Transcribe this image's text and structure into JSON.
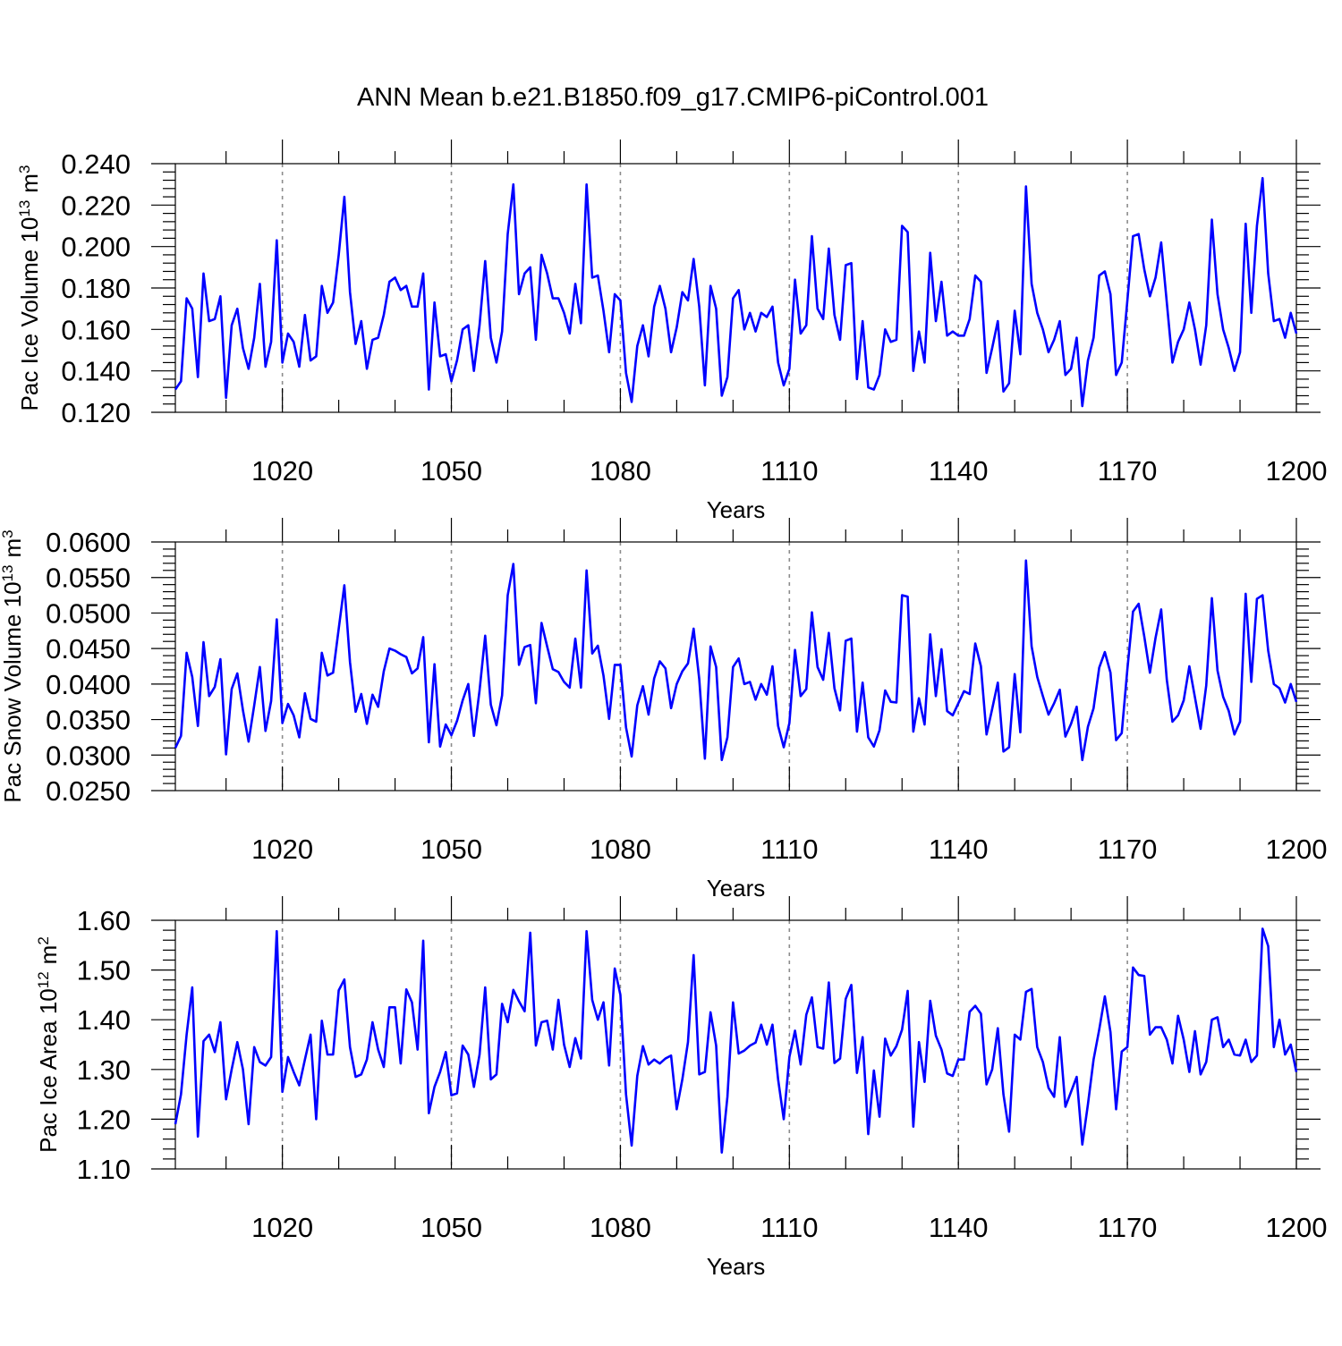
{
  "title": "ANN Mean b.e21.B1850.f09_g17.CMIP6-piControl.001",
  "series_color": "#0000ff",
  "chart_data": [
    {
      "type": "line",
      "title": "ANN Mean b.e21.B1850.f09_g17.CMIP6-piControl.001",
      "xlabel": "Years",
      "ylabel_main": "Pac Ice Volume 10",
      "ylabel_exp": "13",
      "ylabel_unit": "m",
      "ylabel_unit_exp": "3",
      "x_start": 1001,
      "xlim": [
        1001,
        1200
      ],
      "ylim": [
        0.12,
        0.24
      ],
      "x_ticks": [
        "1020",
        "1050",
        "1080",
        "1110",
        "1140",
        "1170",
        "1200"
      ],
      "y_ticks": [
        "0.120",
        "0.140",
        "0.160",
        "0.180",
        "0.200",
        "0.220",
        "0.240"
      ],
      "y_major_step": 0.02,
      "y_minor_step": 0.004,
      "series": [
        {
          "name": "Pac Ice Volume",
          "values": [
            0.131,
            0.135,
            0.175,
            0.17,
            0.137,
            0.187,
            0.164,
            0.165,
            0.176,
            0.127,
            0.162,
            0.17,
            0.151,
            0.141,
            0.156,
            0.182,
            0.142,
            0.154,
            0.203,
            0.144,
            0.158,
            0.154,
            0.142,
            0.167,
            0.145,
            0.147,
            0.181,
            0.168,
            0.173,
            0.196,
            0.224,
            0.178,
            0.153,
            0.164,
            0.141,
            0.155,
            0.156,
            0.167,
            0.183,
            0.185,
            0.179,
            0.181,
            0.171,
            0.171,
            0.187,
            0.131,
            0.173,
            0.147,
            0.148,
            0.135,
            0.145,
            0.16,
            0.162,
            0.14,
            0.162,
            0.193,
            0.156,
            0.144,
            0.159,
            0.206,
            0.23,
            0.177,
            0.187,
            0.19,
            0.155,
            0.196,
            0.187,
            0.175,
            0.175,
            0.168,
            0.158,
            0.182,
            0.163,
            0.23,
            0.185,
            0.186,
            0.169,
            0.149,
            0.177,
            0.174,
            0.139,
            0.125,
            0.152,
            0.162,
            0.147,
            0.171,
            0.181,
            0.17,
            0.149,
            0.161,
            0.178,
            0.174,
            0.194,
            0.171,
            0.133,
            0.181,
            0.17,
            0.128,
            0.137,
            0.175,
            0.179,
            0.16,
            0.168,
            0.159,
            0.168,
            0.166,
            0.171,
            0.144,
            0.133,
            0.141,
            0.184,
            0.158,
            0.162,
            0.205,
            0.17,
            0.165,
            0.199,
            0.167,
            0.155,
            0.191,
            0.192,
            0.136,
            0.164,
            0.132,
            0.131,
            0.138,
            0.16,
            0.154,
            0.155,
            0.21,
            0.207,
            0.14,
            0.159,
            0.144,
            0.197,
            0.164,
            0.183,
            0.157,
            0.159,
            0.157,
            0.157,
            0.165,
            0.186,
            0.183,
            0.139,
            0.151,
            0.164,
            0.13,
            0.134,
            0.169,
            0.148,
            0.229,
            0.182,
            0.168,
            0.16,
            0.149,
            0.155,
            0.164,
            0.138,
            0.141,
            0.156,
            0.123,
            0.145,
            0.156,
            0.186,
            0.188,
            0.177,
            0.138,
            0.144,
            0.174,
            0.205,
            0.206,
            0.189,
            0.176,
            0.185,
            0.202,
            0.173,
            0.144,
            0.154,
            0.16,
            0.173,
            0.16,
            0.143,
            0.162,
            0.213,
            0.177,
            0.16,
            0.151,
            0.14,
            0.149,
            0.211,
            0.168,
            0.21,
            0.233,
            0.187,
            0.164,
            0.165,
            0.156,
            0.168,
            0.158
          ]
        }
      ]
    },
    {
      "type": "line",
      "xlabel": "Years",
      "ylabel_main": "Pac Snow Volume 10",
      "ylabel_exp": "13",
      "ylabel_unit": "m",
      "ylabel_unit_exp": "3",
      "x_start": 1001,
      "xlim": [
        1001,
        1200
      ],
      "ylim": [
        0.025,
        0.06
      ],
      "x_ticks": [
        "1020",
        "1050",
        "1080",
        "1110",
        "1140",
        "1170",
        "1200"
      ],
      "y_ticks": [
        "0.0250",
        "0.0300",
        "0.0350",
        "0.0400",
        "0.0450",
        "0.0500",
        "0.0550",
        "0.0600"
      ],
      "y_major_step": 0.005,
      "y_minor_step": 0.001,
      "series": [
        {
          "name": "Pac Snow Volume",
          "values": [
            0.031,
            0.0327,
            0.0444,
            0.041,
            0.0341,
            0.0459,
            0.0383,
            0.0396,
            0.0435,
            0.0301,
            0.0393,
            0.0415,
            0.0363,
            0.0319,
            0.037,
            0.0424,
            0.0334,
            0.0376,
            0.0491,
            0.0345,
            0.0372,
            0.0356,
            0.0325,
            0.0387,
            0.0351,
            0.0347,
            0.0444,
            0.0412,
            0.0416,
            0.0478,
            0.0539,
            0.0431,
            0.0361,
            0.0386,
            0.0344,
            0.0385,
            0.0368,
            0.0418,
            0.045,
            0.0447,
            0.0442,
            0.0438,
            0.0415,
            0.0422,
            0.0466,
            0.0318,
            0.0428,
            0.0312,
            0.0343,
            0.0328,
            0.0348,
            0.0377,
            0.04,
            0.0327,
            0.0391,
            0.0468,
            0.0371,
            0.0342,
            0.0384,
            0.0525,
            0.0569,
            0.0427,
            0.0452,
            0.0455,
            0.0373,
            0.0486,
            0.0453,
            0.0421,
            0.0417,
            0.0403,
            0.0395,
            0.0464,
            0.0395,
            0.056,
            0.0443,
            0.0454,
            0.0412,
            0.0351,
            0.0427,
            0.0427,
            0.0339,
            0.0298,
            0.037,
            0.0397,
            0.0357,
            0.0408,
            0.0432,
            0.0422,
            0.0366,
            0.04,
            0.0418,
            0.0429,
            0.0478,
            0.0407,
            0.0295,
            0.0453,
            0.0424,
            0.0293,
            0.0325,
            0.0424,
            0.0436,
            0.04,
            0.0403,
            0.0378,
            0.04,
            0.0385,
            0.0425,
            0.0341,
            0.0311,
            0.0345,
            0.0448,
            0.0383,
            0.0393,
            0.0501,
            0.0424,
            0.0406,
            0.0472,
            0.0394,
            0.0363,
            0.0461,
            0.0464,
            0.0333,
            0.0402,
            0.0325,
            0.0312,
            0.0335,
            0.0391,
            0.0375,
            0.0374,
            0.0525,
            0.0523,
            0.0333,
            0.038,
            0.0343,
            0.047,
            0.0383,
            0.0449,
            0.0362,
            0.0356,
            0.0373,
            0.039,
            0.0386,
            0.0457,
            0.0425,
            0.0329,
            0.0365,
            0.0402,
            0.0305,
            0.0311,
            0.0414,
            0.0332,
            0.0574,
            0.0453,
            0.041,
            0.0383,
            0.0357,
            0.0373,
            0.0392,
            0.0326,
            0.0344,
            0.0368,
            0.0293,
            0.034,
            0.0366,
            0.0423,
            0.0445,
            0.0416,
            0.0321,
            0.0331,
            0.0421,
            0.0502,
            0.0513,
            0.0467,
            0.0416,
            0.0465,
            0.0505,
            0.0406,
            0.0347,
            0.0356,
            0.0377,
            0.0425,
            0.0381,
            0.0337,
            0.0398,
            0.0521,
            0.0419,
            0.0382,
            0.0362,
            0.0329,
            0.0347,
            0.0527,
            0.0403,
            0.052,
            0.0525,
            0.0447,
            0.04,
            0.0394,
            0.0374,
            0.04,
            0.0375
          ]
        }
      ]
    },
    {
      "type": "line",
      "xlabel": "Years",
      "ylabel_main": "Pac Ice Area 10",
      "ylabel_exp": "12",
      "ylabel_unit": "m",
      "ylabel_unit_exp": "2",
      "x_start": 1001,
      "xlim": [
        1001,
        1200
      ],
      "ylim": [
        1.1,
        1.6
      ],
      "x_ticks": [
        "1020",
        "1050",
        "1080",
        "1110",
        "1140",
        "1170",
        "1200"
      ],
      "y_ticks": [
        "1.10",
        "1.20",
        "1.30",
        "1.40",
        "1.50",
        "1.60"
      ],
      "y_major_step": 0.1,
      "y_minor_step": 0.02,
      "series": [
        {
          "name": "Pac Ice Area",
          "values": [
            1.19,
            1.25,
            1.37,
            1.465,
            1.165,
            1.357,
            1.37,
            1.335,
            1.395,
            1.24,
            1.3,
            1.355,
            1.3,
            1.19,
            1.345,
            1.315,
            1.308,
            1.325,
            1.578,
            1.255,
            1.325,
            1.295,
            1.268,
            1.32,
            1.37,
            1.2,
            1.398,
            1.33,
            1.33,
            1.459,
            1.481,
            1.345,
            1.285,
            1.29,
            1.32,
            1.395,
            1.34,
            1.305,
            1.425,
            1.425,
            1.312,
            1.461,
            1.435,
            1.34,
            1.559,
            1.212,
            1.265,
            1.295,
            1.335,
            1.248,
            1.252,
            1.348,
            1.33,
            1.265,
            1.33,
            1.465,
            1.28,
            1.29,
            1.432,
            1.395,
            1.46,
            1.437,
            1.417,
            1.575,
            1.348,
            1.395,
            1.398,
            1.34,
            1.44,
            1.35,
            1.305,
            1.363,
            1.322,
            1.578,
            1.44,
            1.4,
            1.435,
            1.308,
            1.503,
            1.45,
            1.25,
            1.147,
            1.287,
            1.347,
            1.31,
            1.32,
            1.312,
            1.322,
            1.328,
            1.22,
            1.28,
            1.355,
            1.53,
            1.29,
            1.295,
            1.415,
            1.348,
            1.133,
            1.245,
            1.435,
            1.332,
            1.338,
            1.348,
            1.354,
            1.39,
            1.35,
            1.39,
            1.28,
            1.2,
            1.325,
            1.378,
            1.31,
            1.41,
            1.445,
            1.345,
            1.342,
            1.475,
            1.313,
            1.322,
            1.442,
            1.47,
            1.293,
            1.365,
            1.17,
            1.298,
            1.205,
            1.362,
            1.328,
            1.347,
            1.38,
            1.458,
            1.185,
            1.355,
            1.275,
            1.438,
            1.368,
            1.34,
            1.292,
            1.287,
            1.32,
            1.32,
            1.416,
            1.428,
            1.412,
            1.27,
            1.3,
            1.383,
            1.25,
            1.175,
            1.37,
            1.36,
            1.456,
            1.462,
            1.345,
            1.315,
            1.263,
            1.245,
            1.365,
            1.225,
            1.255,
            1.285,
            1.149,
            1.23,
            1.32,
            1.38,
            1.447,
            1.375,
            1.22,
            1.336,
            1.345,
            1.505,
            1.49,
            1.488,
            1.37,
            1.385,
            1.385,
            1.36,
            1.312,
            1.408,
            1.36,
            1.295,
            1.377,
            1.29,
            1.315,
            1.4,
            1.405,
            1.345,
            1.36,
            1.33,
            1.328,
            1.36,
            1.315,
            1.328,
            1.583,
            1.548,
            1.345,
            1.4,
            1.33,
            1.35,
            1.295
          ]
        }
      ]
    }
  ]
}
